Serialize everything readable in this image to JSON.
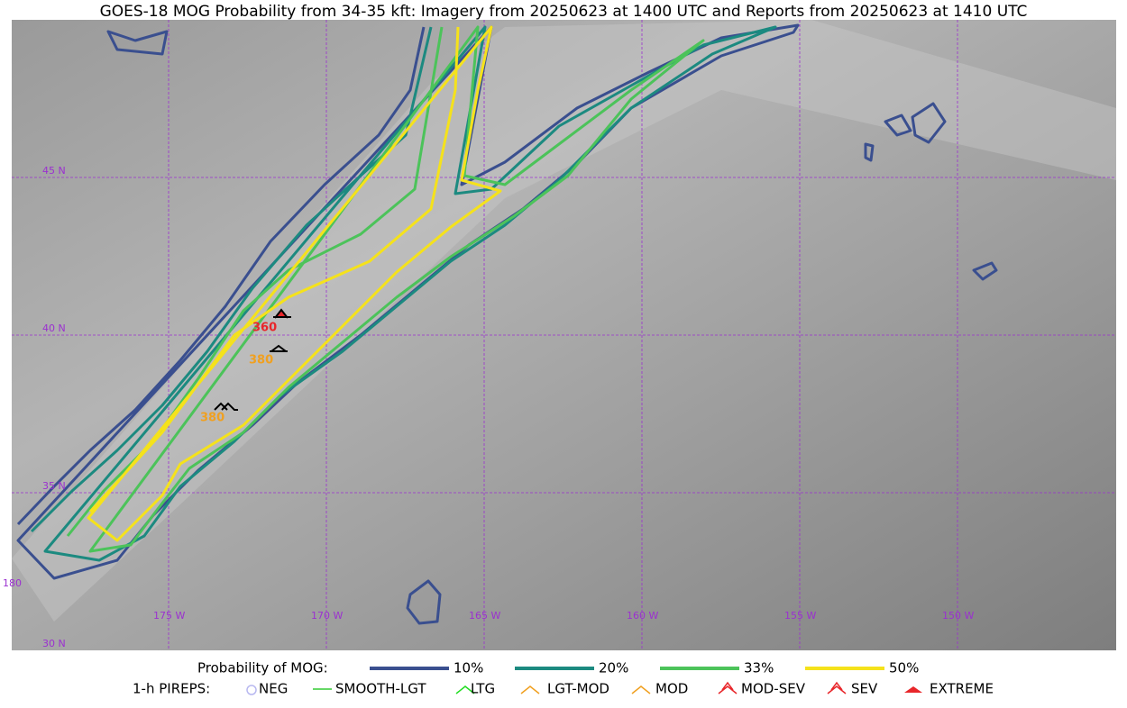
{
  "title": "GOES-18 MOG Probability from 34-35 kft: Imagery from 20250623 at 1400 UTC and Reports from 20250623 at 1410 UTC",
  "map": {
    "lat_labels": [
      "45 N",
      "40 N",
      "35 N",
      "30 N"
    ],
    "lon_labels": [
      "180",
      "175 W",
      "170 W",
      "165 W",
      "160 W",
      "155 W",
      "150 W"
    ],
    "reports": [
      {
        "label": "360",
        "color": "#e8262a"
      },
      {
        "label": "380",
        "color": "#f0a020"
      },
      {
        "label": "380",
        "color": "#f0a020"
      }
    ]
  },
  "legend": {
    "contour_title": "Probability of MOG:",
    "contours": [
      {
        "label": "10%",
        "color": "#3a4f8f"
      },
      {
        "label": "20%",
        "color": "#1c8a80"
      },
      {
        "label": "33%",
        "color": "#4cc35a"
      },
      {
        "label": "50%",
        "color": "#f5e21b"
      }
    ],
    "pirep_title": "1-h PIREPS:",
    "pireps": [
      {
        "label": "NEG",
        "color": "#b8b8f0"
      },
      {
        "label": "SMOOTH-LGT",
        "color": "#33cc33"
      },
      {
        "label": "LTG",
        "color": "#22dd22"
      },
      {
        "label": "LGT-MOD",
        "color": "#f0a020"
      },
      {
        "label": "MOD",
        "color": "#f0a020"
      },
      {
        "label": "MOD-SEV",
        "color": "#e8262a"
      },
      {
        "label": "SEV",
        "color": "#e8262a"
      },
      {
        "label": "EXTREME",
        "color": "#e8262a"
      }
    ]
  }
}
